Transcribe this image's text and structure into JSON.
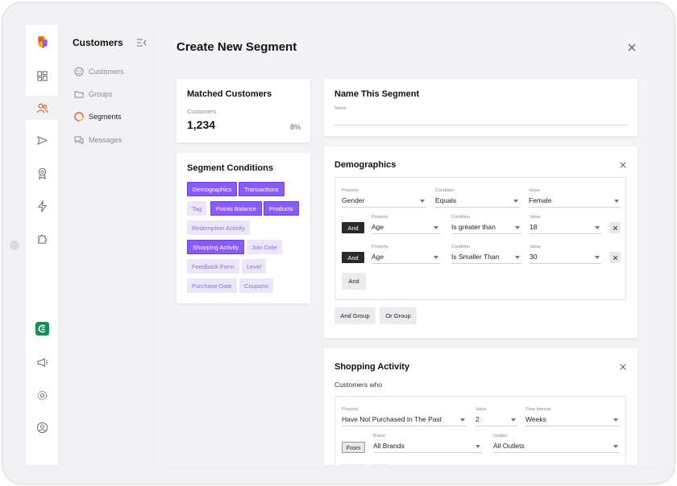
{
  "sidebar": {
    "title": "Customers",
    "items": [
      {
        "label": "Customers",
        "icon": "customers-icon",
        "active": false
      },
      {
        "label": "Groups",
        "icon": "folder-icon",
        "active": false
      },
      {
        "label": "Segments",
        "icon": "segments-icon",
        "active": true
      },
      {
        "label": "Messages",
        "icon": "messages-icon",
        "active": false
      }
    ]
  },
  "rail": {
    "icons": [
      "logo-icon",
      "dashboard-icon",
      "users-icon",
      "send-icon",
      "award-icon",
      "lightning-icon",
      "puzzle-icon",
      "brand-icon",
      "megaphone-icon",
      "gear-icon",
      "profile-icon"
    ]
  },
  "page": {
    "title": "Create New Segment"
  },
  "matched": {
    "title": "Matched Customers",
    "label": "Customers",
    "count": "1,234",
    "percent": "8%"
  },
  "conditions": {
    "title": "Segment Conditions",
    "tags": [
      {
        "label": "Demographics",
        "on": true
      },
      {
        "label": "Transactions",
        "on": true
      },
      {
        "label": "Tag",
        "on": false
      },
      {
        "label": "Points Balance",
        "on": true
      },
      {
        "label": "Products",
        "on": true
      },
      {
        "label": "Redemption Activity",
        "on": false
      },
      {
        "label": "Shopping Activity",
        "on": true
      },
      {
        "label": "Join Date",
        "on": false
      },
      {
        "label": "Feedback Form",
        "on": false
      },
      {
        "label": "Level",
        "on": false
      },
      {
        "label": "Purchase Date",
        "on": false
      },
      {
        "label": "Coupons",
        "on": false
      }
    ]
  },
  "name_segment": {
    "title": "Name This Segment",
    "label": "Name",
    "value": ""
  },
  "demographics": {
    "title": "Demographics",
    "property_label": "Property",
    "condition_label": "Condition",
    "value_label": "Value",
    "rows": [
      {
        "property": "Gender",
        "condition": "Equals",
        "value": "Female"
      },
      {
        "connector": "And",
        "property": "Age",
        "condition": "Is greater than",
        "value": "18"
      },
      {
        "connector": "And",
        "property": "Age",
        "condition": "Is Smaller Than",
        "value": "30"
      }
    ],
    "and_button": "And",
    "and_group": "And Group",
    "or_group": "Or Group"
  },
  "shopping": {
    "title": "Shopping Activity",
    "subtitle": "Customers who",
    "property_label": "Property",
    "value_label": "Value",
    "interval_label": "Time Interval",
    "property": "Have Not Purchased In The Past",
    "value": "2",
    "interval": "Weeks",
    "from_button": "From",
    "brand_label": "Brand",
    "brand": "All Brands",
    "outlets_label": "Outlets",
    "outlets": "All Outlets"
  },
  "colors": {
    "accent": "#8a5cf6",
    "accent_light": "#ece6fb",
    "active_nav": "#f05a28"
  }
}
